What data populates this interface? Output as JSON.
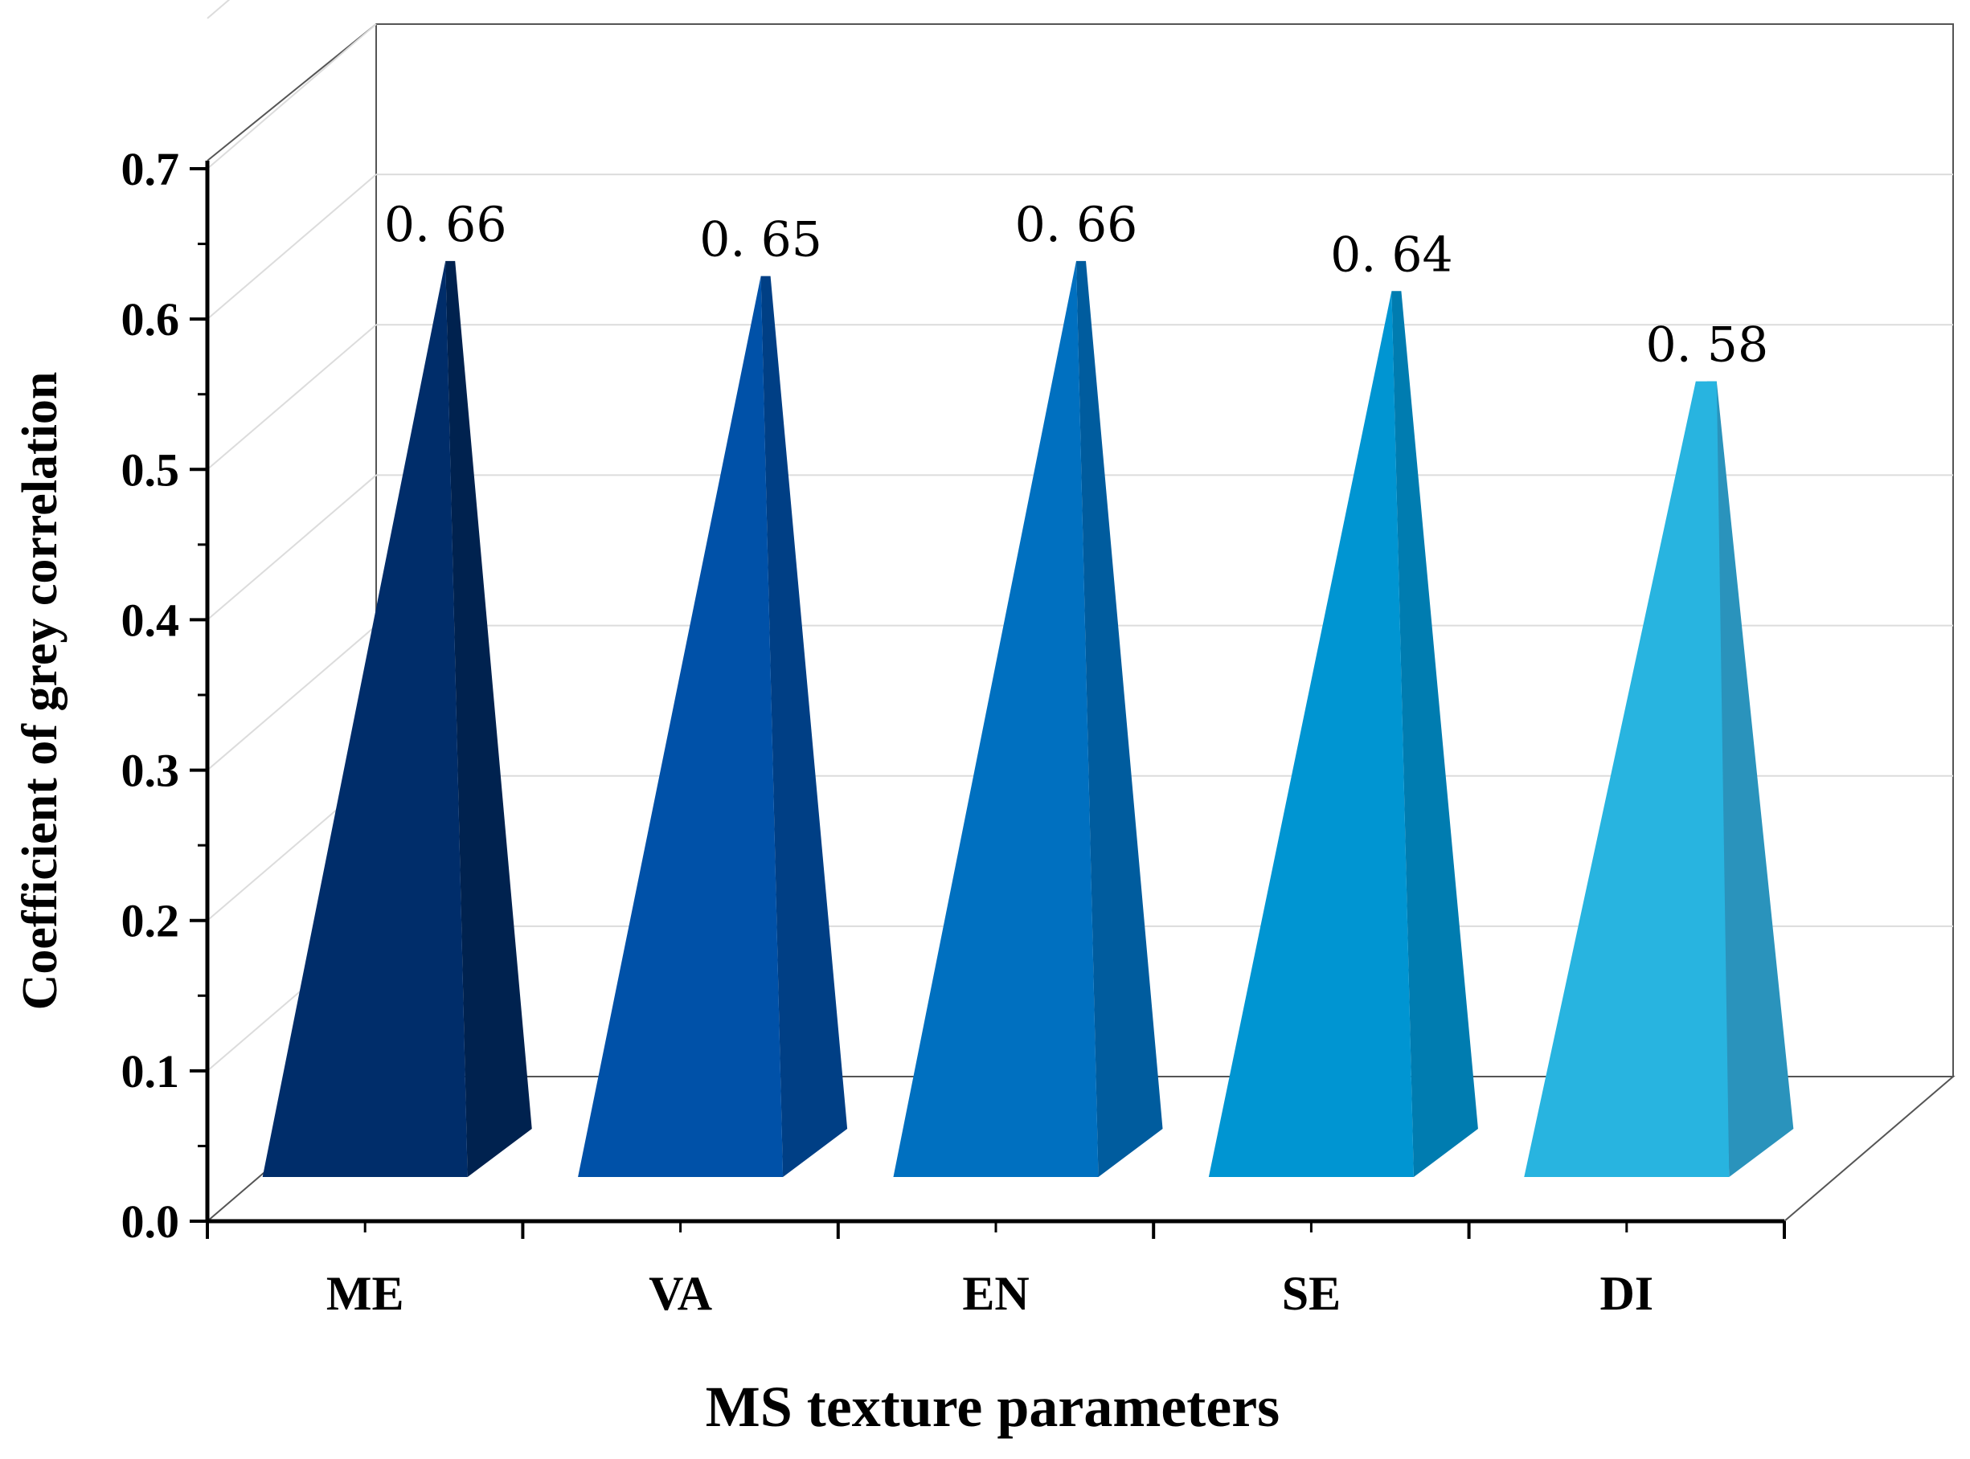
{
  "chart_data": {
    "type": "bar",
    "bar_shape": "pyramid",
    "three_d": true,
    "title": "",
    "xlabel": "MS texture parameters",
    "ylabel": "Coefficient of grey correlation",
    "categories": [
      "ME",
      "VA",
      "EN",
      "SE",
      "DI"
    ],
    "values": [
      0.66,
      0.65,
      0.66,
      0.64,
      0.58
    ],
    "data_labels": [
      "0. 66",
      "0. 65",
      "0. 66",
      "0. 64",
      "0. 58"
    ],
    "colors": [
      "#002D6A",
      "#0051A8",
      "#0070C0",
      "#0095D2",
      "#28B4E0"
    ],
    "side_colors": [
      "#00224F",
      "#003F85",
      "#005C9E",
      "#007CB0",
      "#2A93BC"
    ],
    "ylim": [
      0.0,
      0.7
    ],
    "yticks": [
      0.0,
      0.1,
      0.2,
      0.3,
      0.4,
      0.5,
      0.6,
      0.7
    ],
    "ytick_labels": [
      "0.0",
      "0.1",
      "0.2",
      "0.3",
      "0.4",
      "0.5",
      "0.6",
      "0.7"
    ],
    "grid": true,
    "legend": "none"
  }
}
